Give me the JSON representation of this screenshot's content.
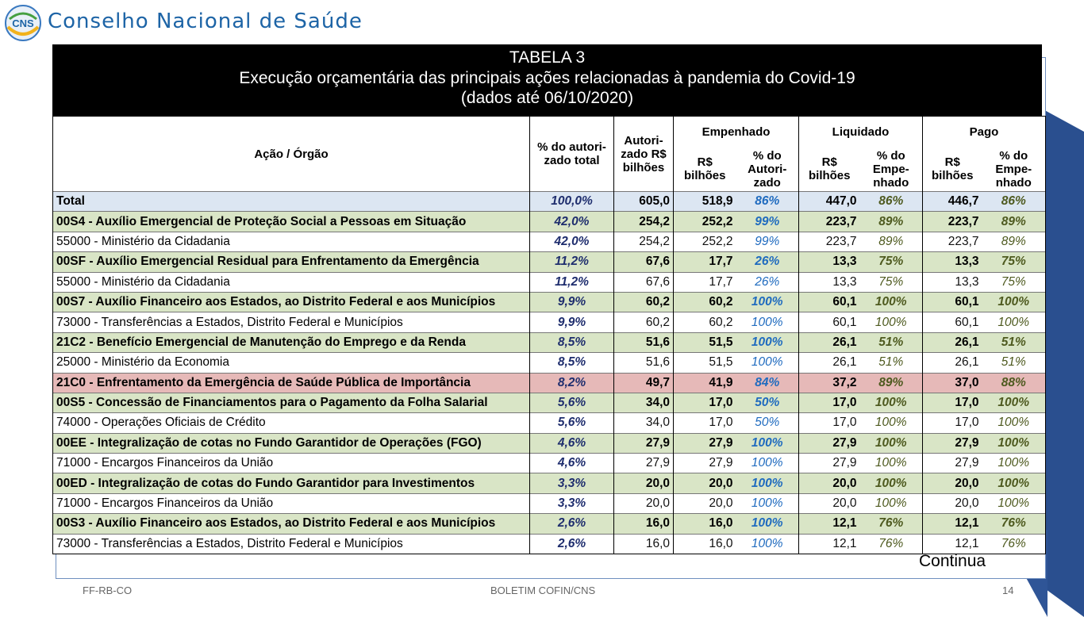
{
  "header": {
    "logo_text": "CNS",
    "org_name": "Conselho Nacional de Saúde"
  },
  "table": {
    "label": "TABELA 3",
    "title": "Execução orçamentária das principais ações relacionadas à pandemia do Covid-19",
    "subtitle": "(dados até 06/10/2020)",
    "columns": {
      "acao": "Ação / Órgão",
      "pct_total": "% do autori-zado total",
      "autorizado": "Autori-zado R$ bilhões",
      "empenhado": "Empenhado",
      "liquidado": "Liquidado",
      "pago": "Pago",
      "emp_val": "R$ bilhões",
      "emp_pct": "% do Autori-zado",
      "liq_val": "R$ bilhões",
      "liq_pct": "% do Empe-nhado",
      "pago_val": "R$ bilhões",
      "pago_pct": "% do Empe-nhado"
    },
    "rows": [
      {
        "name": "Total",
        "pct": "100,0%",
        "aut": "605,0",
        "emp": "518,9",
        "emp_pct": "86%",
        "liq": "447,0",
        "liq_pct": "86%",
        "pago": "446,7",
        "pago_pct": "86%"
      },
      {
        "name": "00S4 - Auxílio Emergencial de Proteção Social a Pessoas em Situação",
        "pct": "42,0%",
        "aut": "254,2",
        "emp": "252,2",
        "emp_pct": "99%",
        "liq": "223,7",
        "liq_pct": "89%",
        "pago": "223,7",
        "pago_pct": "89%"
      },
      {
        "name": "55000 - Ministério da Cidadania",
        "pct": "42,0%",
        "aut": "254,2",
        "emp": "252,2",
        "emp_pct": "99%",
        "liq": "223,7",
        "liq_pct": "89%",
        "pago": "223,7",
        "pago_pct": "89%"
      },
      {
        "name": "00SF - Auxílio Emergencial Residual para Enfrentamento da Emergência",
        "pct": "11,2%",
        "aut": "67,6",
        "emp": "17,7",
        "emp_pct": "26%",
        "liq": "13,3",
        "liq_pct": "75%",
        "pago": "13,3",
        "pago_pct": "75%"
      },
      {
        "name": "55000 - Ministério da Cidadania",
        "pct": "11,2%",
        "aut": "67,6",
        "emp": "17,7",
        "emp_pct": "26%",
        "liq": "13,3",
        "liq_pct": "75%",
        "pago": "13,3",
        "pago_pct": "75%"
      },
      {
        "name": "00S7 - Auxílio Financeiro aos Estados, ao Distrito Federal e aos Municípios",
        "pct": "9,9%",
        "aut": "60,2",
        "emp": "60,2",
        "emp_pct": "100%",
        "liq": "60,1",
        "liq_pct": "100%",
        "pago": "60,1",
        "pago_pct": "100%"
      },
      {
        "name": "73000 - Transferências a Estados, Distrito Federal e Municípios",
        "pct": "9,9%",
        "aut": "60,2",
        "emp": "60,2",
        "emp_pct": "100%",
        "liq": "60,1",
        "liq_pct": "100%",
        "pago": "60,1",
        "pago_pct": "100%"
      },
      {
        "name": "21C2 - Benefício Emergencial de Manutenção do Emprego e da Renda",
        "pct": "8,5%",
        "aut": "51,6",
        "emp": "51,5",
        "emp_pct": "100%",
        "liq": "26,1",
        "liq_pct": "51%",
        "pago": "26,1",
        "pago_pct": "51%"
      },
      {
        "name": "25000 - Ministério da Economia",
        "pct": "8,5%",
        "aut": "51,6",
        "emp": "51,5",
        "emp_pct": "100%",
        "liq": "26,1",
        "liq_pct": "51%",
        "pago": "26,1",
        "pago_pct": "51%"
      },
      {
        "name": "21C0 - Enfrentamento da Emergência de Saúde Pública de Importância",
        "pct": "8,2%",
        "aut": "49,7",
        "emp": "41,9",
        "emp_pct": "84%",
        "liq": "37,2",
        "liq_pct": "89%",
        "pago": "37,0",
        "pago_pct": "88%"
      },
      {
        "name": "00S5 - Concessão de Financiamentos para o Pagamento da Folha Salarial",
        "pct": "5,6%",
        "aut": "34,0",
        "emp": "17,0",
        "emp_pct": "50%",
        "liq": "17,0",
        "liq_pct": "100%",
        "pago": "17,0",
        "pago_pct": "100%"
      },
      {
        "name": "74000 - Operações Oficiais de Crédito",
        "pct": "5,6%",
        "aut": "34,0",
        "emp": "17,0",
        "emp_pct": "50%",
        "liq": "17,0",
        "liq_pct": "100%",
        "pago": "17,0",
        "pago_pct": "100%"
      },
      {
        "name": "00EE - Integralização de cotas no Fundo Garantidor de Operações (FGO)",
        "pct": "4,6%",
        "aut": "27,9",
        "emp": "27,9",
        "emp_pct": "100%",
        "liq": "27,9",
        "liq_pct": "100%",
        "pago": "27,9",
        "pago_pct": "100%"
      },
      {
        "name": "71000 - Encargos Financeiros da União",
        "pct": "4,6%",
        "aut": "27,9",
        "emp": "27,9",
        "emp_pct": "100%",
        "liq": "27,9",
        "liq_pct": "100%",
        "pago": "27,9",
        "pago_pct": "100%"
      },
      {
        "name": "00ED - Integralização de cotas do Fundo Garantidor para Investimentos",
        "pct": "3,3%",
        "aut": "20,0",
        "emp": "20,0",
        "emp_pct": "100%",
        "liq": "20,0",
        "liq_pct": "100%",
        "pago": "20,0",
        "pago_pct": "100%"
      },
      {
        "name": "71000 - Encargos Financeiros da União",
        "pct": "3,3%",
        "aut": "20,0",
        "emp": "20,0",
        "emp_pct": "100%",
        "liq": "20,0",
        "liq_pct": "100%",
        "pago": "20,0",
        "pago_pct": "100%"
      },
      {
        "name": "00S3 - Auxílio Financeiro aos Estados, ao Distrito Federal e aos Municípios",
        "pct": "2,6%",
        "aut": "16,0",
        "emp": "16,0",
        "emp_pct": "100%",
        "liq": "12,1",
        "liq_pct": "76%",
        "pago": "12,1",
        "pago_pct": "76%"
      },
      {
        "name": "73000 - Transferências a Estados, Distrito Federal e Municípios",
        "pct": "2,6%",
        "aut": "16,0",
        "emp": "16,0",
        "emp_pct": "100%",
        "liq": "12,1",
        "liq_pct": "76%",
        "pago": "12,1",
        "pago_pct": "76%"
      }
    ],
    "row_styles": [
      "total",
      "action",
      "org",
      "action",
      "org",
      "action",
      "org",
      "action",
      "org",
      "highlight",
      "action",
      "org",
      "action",
      "org",
      "action",
      "org",
      "action",
      "org"
    ]
  },
  "continua": "Continua",
  "footer": {
    "left": "FF-RB-CO",
    "center": "BOLETIM COFIN/CNS",
    "page": "14"
  },
  "colors": {
    "brand_blue": "#1d64a6",
    "total_row": "#dce6f2",
    "action_row": "#d9e5c6",
    "highlight_row": "#e6b9b8",
    "deco_navy": "#2a4f8f"
  }
}
